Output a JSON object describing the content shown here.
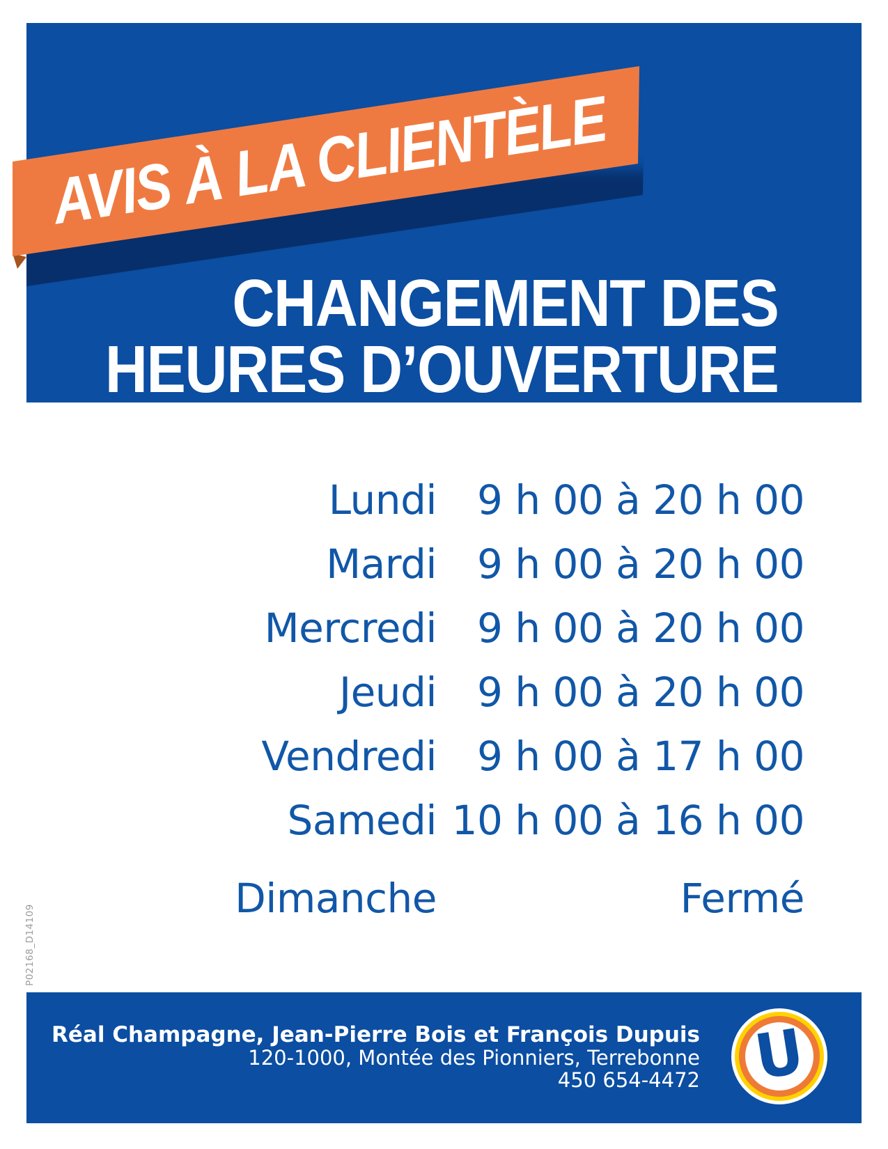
{
  "banner": {
    "label": "AVIS À LA CLIENTÈLE"
  },
  "title": {
    "line1": "CHANGEMENT DES",
    "line2": "HEURES D’OUVERTURE"
  },
  "schedule": {
    "rows": [
      {
        "day": "Lundi",
        "hours": "9 h 00 à 20 h 00"
      },
      {
        "day": "Mardi",
        "hours": "9 h 00 à 20 h 00"
      },
      {
        "day": "Mercredi",
        "hours": "9 h 00 à 20 h 00"
      },
      {
        "day": "Jeudi",
        "hours": "9 h 00 à 20 h 00"
      },
      {
        "day": "Vendredi",
        "hours": "9 h 00 à 17 h 00"
      },
      {
        "day": "Samedi",
        "hours": "10 h 00 à 16 h 00"
      },
      {
        "day": "Dimanche",
        "hours": "Fermé"
      }
    ]
  },
  "footer": {
    "names": "Réal Champagne, Jean-Pierre Bois et François Dupuis",
    "address": "120-1000, Montée des Pionniers, Terrebonne",
    "phone": "450 654-4472",
    "logo_letter": "U"
  },
  "print_code": "P02168_D14109",
  "colors": {
    "panel_blue": "#0B4EA2",
    "text_blue": "#1157A8",
    "ribbon_orange": "#EF7A41",
    "fold_brown": "#A9531F",
    "logo_yellow": "#FFD200",
    "logo_orange": "#EF7A35",
    "white": "#FFFFFF",
    "code_gray": "#9B9B9B"
  }
}
